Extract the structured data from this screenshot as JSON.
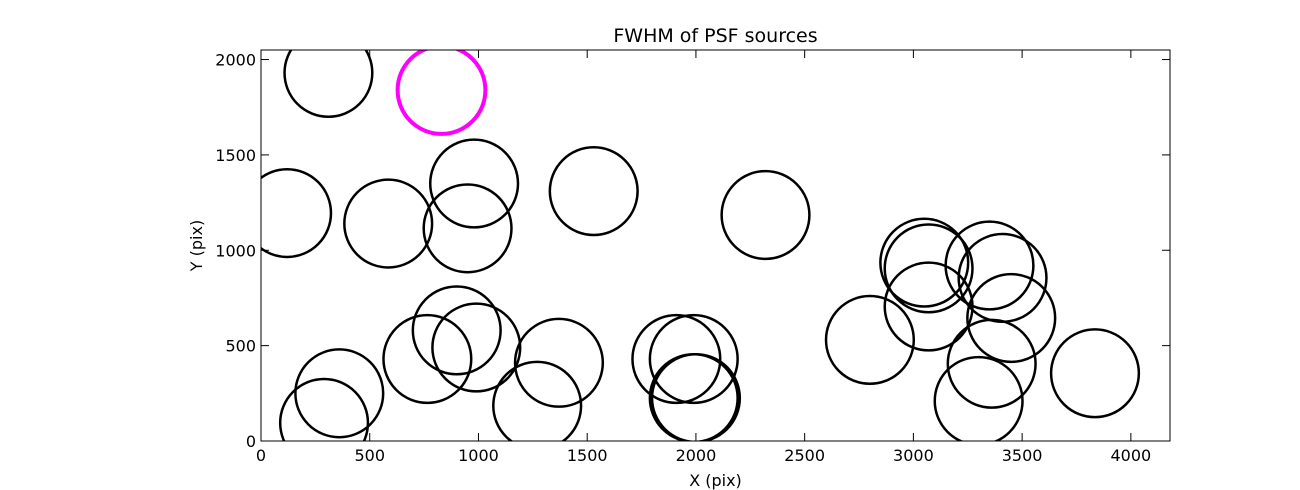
{
  "chart_data": {
    "type": "scatter",
    "title": "FWHM of PSF sources",
    "xlabel": "X (pix)",
    "ylabel": "Y (pix)",
    "xlim": [
      0,
      4180
    ],
    "ylim": [
      0,
      2050
    ],
    "xticks": [
      "0",
      "500",
      "1000",
      "1500",
      "2000",
      "2500",
      "3000",
      "3500",
      "4000"
    ],
    "yticks": [
      "0",
      "500",
      "1000",
      "1500",
      "2000"
    ],
    "grid": false,
    "legend": "none",
    "marker_radius": 215,
    "series": [
      {
        "color": "#000000",
        "points": [
          {
            "x": 310,
            "y": 1930
          },
          {
            "x": 120,
            "y": 1195
          },
          {
            "x": 585,
            "y": 1140
          },
          {
            "x": 980,
            "y": 1350
          },
          {
            "x": 950,
            "y": 1115
          },
          {
            "x": 1530,
            "y": 1310
          },
          {
            "x": 2320,
            "y": 1185
          },
          {
            "x": 1370,
            "y": 410
          },
          {
            "x": 1270,
            "y": 185
          },
          {
            "x": 900,
            "y": 580
          },
          {
            "x": 990,
            "y": 490
          },
          {
            "x": 765,
            "y": 430
          },
          {
            "x": 360,
            "y": 250
          },
          {
            "x": 290,
            "y": 95
          },
          {
            "x": 1910,
            "y": 430
          },
          {
            "x": 1990,
            "y": 430
          },
          {
            "x": 1990,
            "y": 225
          },
          {
            "x": 2000,
            "y": 225
          },
          {
            "x": 2800,
            "y": 530
          },
          {
            "x": 3050,
            "y": 935
          },
          {
            "x": 3070,
            "y": 905
          },
          {
            "x": 3070,
            "y": 705
          },
          {
            "x": 3350,
            "y": 920
          },
          {
            "x": 3410,
            "y": 855
          },
          {
            "x": 3450,
            "y": 645
          },
          {
            "x": 3360,
            "y": 405
          },
          {
            "x": 3300,
            "y": 210
          },
          {
            "x": 3835,
            "y": 355
          }
        ]
      },
      {
        "color": "#ff00ff",
        "points": [
          {
            "x": 830,
            "y": 1840
          }
        ]
      }
    ]
  }
}
